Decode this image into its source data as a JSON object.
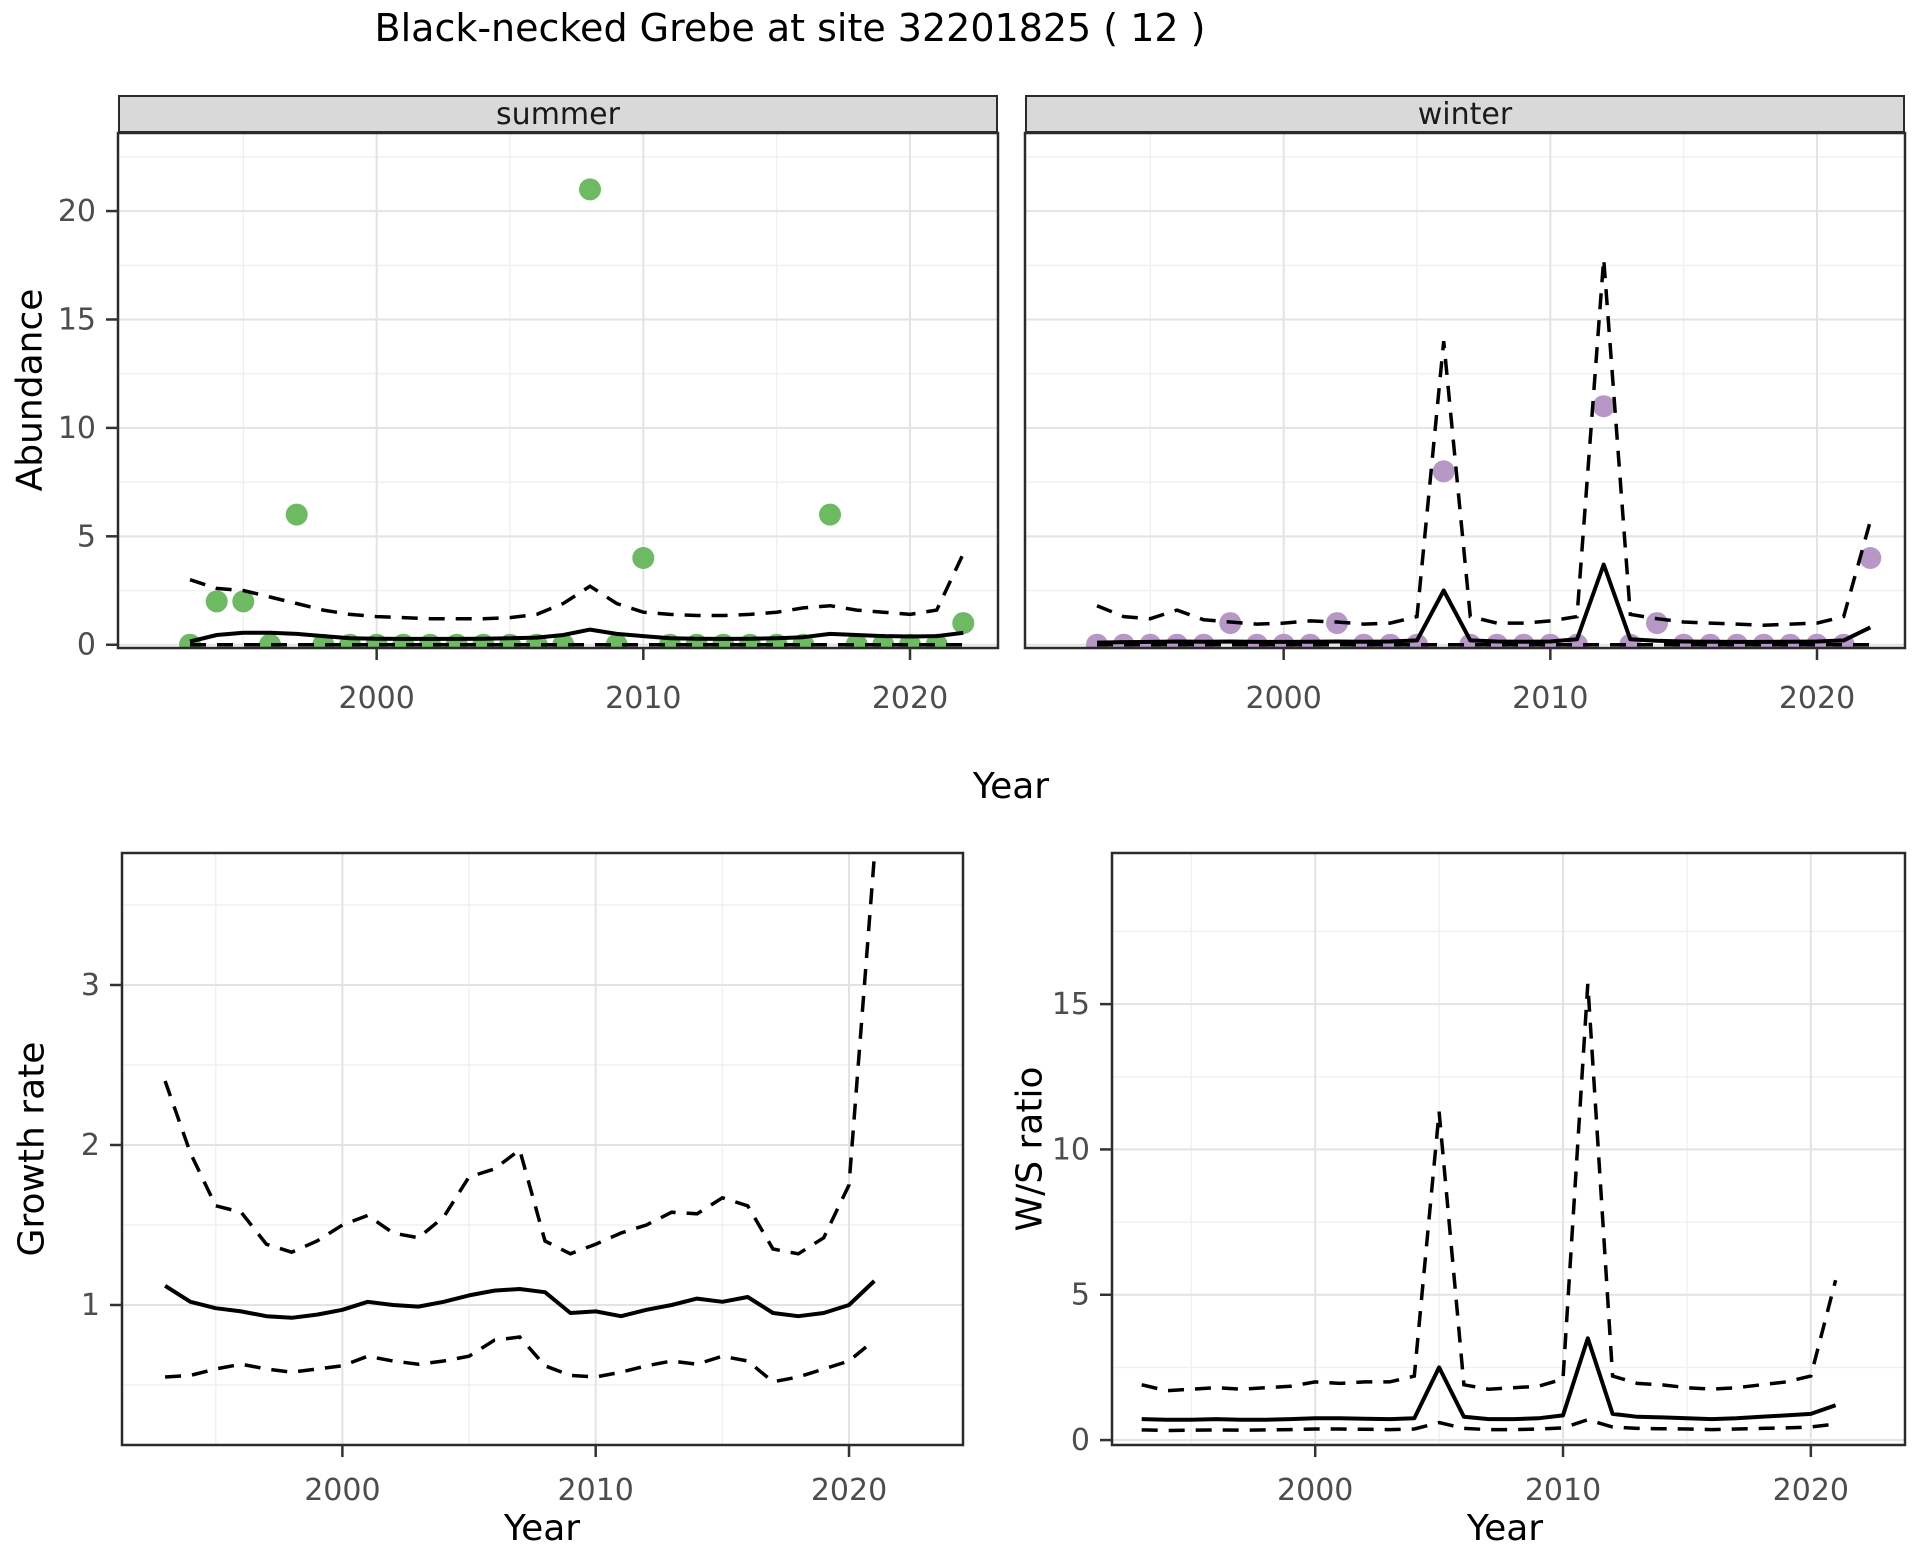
{
  "title": "Black-necked Grebe at site 32201825 ( 12 )",
  "colors": {
    "background": "#ffffff",
    "summer_point": "#6dba63",
    "winter_point": "#b697c6",
    "line": "#000000",
    "strip_bg": "#d9d9d9",
    "strip_text": "#1a1a1a",
    "grid_major": "#e3e3e3",
    "grid_minor": "#f0f0f0",
    "axis_text": "#4d4d4d",
    "axis_title": "#000000",
    "panel_border": "#2b2b2b",
    "tick_mark": "#333333"
  },
  "chart_data": [
    {
      "id": "abundance-summer",
      "type": "scatter",
      "facet_label": "summer",
      "xlabel": "Year",
      "ylabel": "Abundance",
      "legend": "none",
      "grid": true,
      "xlim": [
        1990.3,
        2023.3
      ],
      "ylim": [
        -0.15,
        23.6
      ],
      "x_major_ticks": [
        2000,
        2010,
        2020
      ],
      "x_minor_ticks": [
        1995,
        2005,
        2015
      ],
      "y_major_ticks": [
        0,
        5,
        10,
        15,
        20
      ],
      "y_minor_ticks": [
        2.5,
        7.5,
        12.5,
        17.5,
        22.5
      ],
      "point_color": "#6dba63",
      "years": [
        1993,
        1994,
        1995,
        1996,
        1997,
        1998,
        1999,
        2000,
        2001,
        2002,
        2003,
        2004,
        2005,
        2006,
        2007,
        2008,
        2009,
        2010,
        2011,
        2012,
        2013,
        2014,
        2015,
        2016,
        2017,
        2018,
        2019,
        2020,
        2021,
        2022
      ],
      "points": [
        0,
        2,
        2,
        0,
        6,
        0,
        0,
        0,
        0,
        0,
        0,
        0,
        0,
        0,
        0,
        21,
        0,
        4,
        0,
        0,
        0,
        0,
        0,
        0,
        6,
        0,
        0,
        0,
        0,
        1
      ],
      "fit": [
        0.15,
        0.45,
        0.55,
        0.55,
        0.5,
        0.4,
        0.3,
        0.28,
        0.27,
        0.27,
        0.27,
        0.28,
        0.3,
        0.33,
        0.45,
        0.7,
        0.5,
        0.4,
        0.3,
        0.28,
        0.27,
        0.28,
        0.3,
        0.35,
        0.5,
        0.45,
        0.4,
        0.38,
        0.4,
        0.55
      ],
      "upper_ci": [
        3.0,
        2.6,
        2.5,
        2.2,
        1.9,
        1.6,
        1.4,
        1.3,
        1.25,
        1.2,
        1.2,
        1.2,
        1.25,
        1.4,
        1.9,
        2.7,
        1.9,
        1.5,
        1.4,
        1.35,
        1.35,
        1.4,
        1.5,
        1.7,
        1.8,
        1.6,
        1.5,
        1.4,
        1.6,
        4.2
      ],
      "lower_ci": [
        0,
        0,
        0,
        0,
        0,
        0,
        0,
        0,
        0,
        0,
        0,
        0,
        0,
        0,
        0,
        0,
        0,
        0,
        0,
        0,
        0,
        0,
        0,
        0,
        0,
        0,
        0,
        0,
        0,
        0
      ]
    },
    {
      "id": "abundance-winter",
      "type": "scatter",
      "facet_label": "winter",
      "xlabel": "Year",
      "ylabel": "Abundance",
      "legend": "none",
      "grid": true,
      "xlim": [
        1990.3,
        2023.3
      ],
      "ylim": [
        -0.15,
        23.6
      ],
      "x_major_ticks": [
        2000,
        2010,
        2020
      ],
      "x_minor_ticks": [
        1995,
        2005,
        2015
      ],
      "y_major_ticks": [
        0,
        5,
        10,
        15,
        20
      ],
      "y_minor_ticks": [
        2.5,
        7.5,
        12.5,
        17.5,
        22.5
      ],
      "point_color": "#b697c6",
      "years": [
        1993,
        1994,
        1995,
        1996,
        1997,
        1998,
        1999,
        2000,
        2001,
        2002,
        2003,
        2004,
        2005,
        2006,
        2007,
        2008,
        2009,
        2010,
        2011,
        2012,
        2013,
        2014,
        2015,
        2016,
        2017,
        2018,
        2019,
        2020,
        2021,
        2022
      ],
      "points": [
        0,
        0,
        0,
        0,
        0,
        1,
        0,
        0,
        0,
        1,
        0,
        0,
        0,
        8,
        0,
        0,
        0,
        0,
        0,
        11,
        0,
        1,
        0,
        0,
        0,
        0,
        0,
        0,
        0,
        4
      ],
      "fit": [
        0.1,
        0.12,
        0.13,
        0.15,
        0.14,
        0.15,
        0.13,
        0.13,
        0.14,
        0.15,
        0.14,
        0.15,
        0.2,
        2.5,
        0.2,
        0.15,
        0.14,
        0.15,
        0.25,
        3.7,
        0.25,
        0.18,
        0.15,
        0.14,
        0.13,
        0.13,
        0.14,
        0.15,
        0.2,
        0.8
      ],
      "upper_ci": [
        1.8,
        1.3,
        1.2,
        1.6,
        1.15,
        1.05,
        0.95,
        1.0,
        1.1,
        1.05,
        0.95,
        1.0,
        1.3,
        14.0,
        1.3,
        1.0,
        1.0,
        1.1,
        1.3,
        17.8,
        1.4,
        1.2,
        1.05,
        1.0,
        0.95,
        0.9,
        0.95,
        1.0,
        1.3,
        5.7
      ],
      "lower_ci": [
        0,
        0,
        0,
        0,
        0,
        0,
        0,
        0,
        0,
        0,
        0,
        0,
        0,
        0,
        0,
        0,
        0,
        0,
        0,
        0,
        0,
        0,
        0,
        0,
        0,
        0,
        0,
        0,
        0,
        0
      ]
    },
    {
      "id": "growth-rate",
      "type": "line",
      "facet_label": "",
      "xlabel": "Year",
      "ylabel": "Growth rate",
      "legend": "none",
      "grid": true,
      "xlim": [
        1991.3,
        2024.5
      ],
      "ylim": [
        0.125,
        3.825
      ],
      "x_major_ticks": [
        2000,
        2010,
        2020
      ],
      "x_minor_ticks": [
        1995,
        2005,
        2015
      ],
      "y_major_ticks": [
        1,
        2,
        3
      ],
      "y_minor_ticks": [
        0.5,
        1.5,
        2.5,
        3.5
      ],
      "years": [
        1993,
        1994,
        1995,
        1996,
        1997,
        1998,
        1999,
        2000,
        2001,
        2002,
        2003,
        2004,
        2005,
        2006,
        2007,
        2008,
        2009,
        2010,
        2011,
        2012,
        2013,
        2014,
        2015,
        2016,
        2017,
        2018,
        2019,
        2020,
        2021
      ],
      "fit": [
        1.12,
        1.02,
        0.98,
        0.96,
        0.93,
        0.92,
        0.94,
        0.97,
        1.02,
        1.0,
        0.99,
        1.02,
        1.06,
        1.09,
        1.1,
        1.08,
        0.95,
        0.96,
        0.93,
        0.97,
        1.0,
        1.04,
        1.02,
        1.05,
        0.95,
        0.93,
        0.95,
        1.0,
        1.15
      ],
      "upper_ci": [
        2.4,
        1.95,
        1.62,
        1.58,
        1.38,
        1.33,
        1.4,
        1.5,
        1.56,
        1.45,
        1.42,
        1.55,
        1.8,
        1.85,
        1.97,
        1.4,
        1.32,
        1.38,
        1.45,
        1.5,
        1.58,
        1.57,
        1.67,
        1.62,
        1.35,
        1.32,
        1.42,
        1.75,
        3.8
      ],
      "lower_ci": [
        0.55,
        0.56,
        0.6,
        0.63,
        0.6,
        0.58,
        0.6,
        0.62,
        0.68,
        0.65,
        0.63,
        0.65,
        0.68,
        0.78,
        0.8,
        0.62,
        0.56,
        0.55,
        0.58,
        0.62,
        0.65,
        0.63,
        0.68,
        0.65,
        0.52,
        0.55,
        0.6,
        0.65,
        0.78
      ]
    },
    {
      "id": "ws-ratio",
      "type": "line",
      "facet_label": "",
      "xlabel": "Year",
      "ylabel": "W/S ratio",
      "legend": "none",
      "grid": true,
      "xlim": [
        1991.8,
        2023.8
      ],
      "ylim": [
        -0.17,
        20.2
      ],
      "x_major_ticks": [
        2000,
        2010,
        2020
      ],
      "x_minor_ticks": [
        1995,
        2005,
        2015
      ],
      "y_major_ticks": [
        0,
        5,
        10,
        15
      ],
      "y_minor_ticks": [
        2.5,
        7.5,
        12.5,
        17.5
      ],
      "years": [
        1993,
        1994,
        1995,
        1996,
        1997,
        1998,
        1999,
        2000,
        2001,
        2002,
        2003,
        2004,
        2005,
        2006,
        2007,
        2008,
        2009,
        2010,
        2011,
        2012,
        2013,
        2014,
        2015,
        2016,
        2017,
        2018,
        2019,
        2020,
        2021
      ],
      "fit": [
        0.72,
        0.7,
        0.7,
        0.72,
        0.7,
        0.7,
        0.72,
        0.75,
        0.75,
        0.73,
        0.72,
        0.75,
        2.5,
        0.8,
        0.72,
        0.72,
        0.75,
        0.85,
        3.5,
        0.9,
        0.8,
        0.78,
        0.75,
        0.72,
        0.75,
        0.8,
        0.85,
        0.9,
        1.2
      ],
      "upper_ci": [
        1.9,
        1.7,
        1.75,
        1.8,
        1.75,
        1.8,
        1.85,
        2.0,
        1.95,
        2.0,
        2.0,
        2.2,
        11.3,
        1.9,
        1.75,
        1.8,
        1.85,
        2.1,
        15.7,
        2.2,
        1.95,
        1.9,
        1.8,
        1.75,
        1.8,
        1.9,
        2.0,
        2.2,
        5.5
      ],
      "lower_ci": [
        0.35,
        0.33,
        0.34,
        0.35,
        0.34,
        0.35,
        0.36,
        0.38,
        0.38,
        0.37,
        0.36,
        0.38,
        0.6,
        0.4,
        0.36,
        0.36,
        0.38,
        0.42,
        0.7,
        0.45,
        0.4,
        0.39,
        0.38,
        0.36,
        0.38,
        0.4,
        0.42,
        0.45,
        0.55
      ]
    }
  ]
}
